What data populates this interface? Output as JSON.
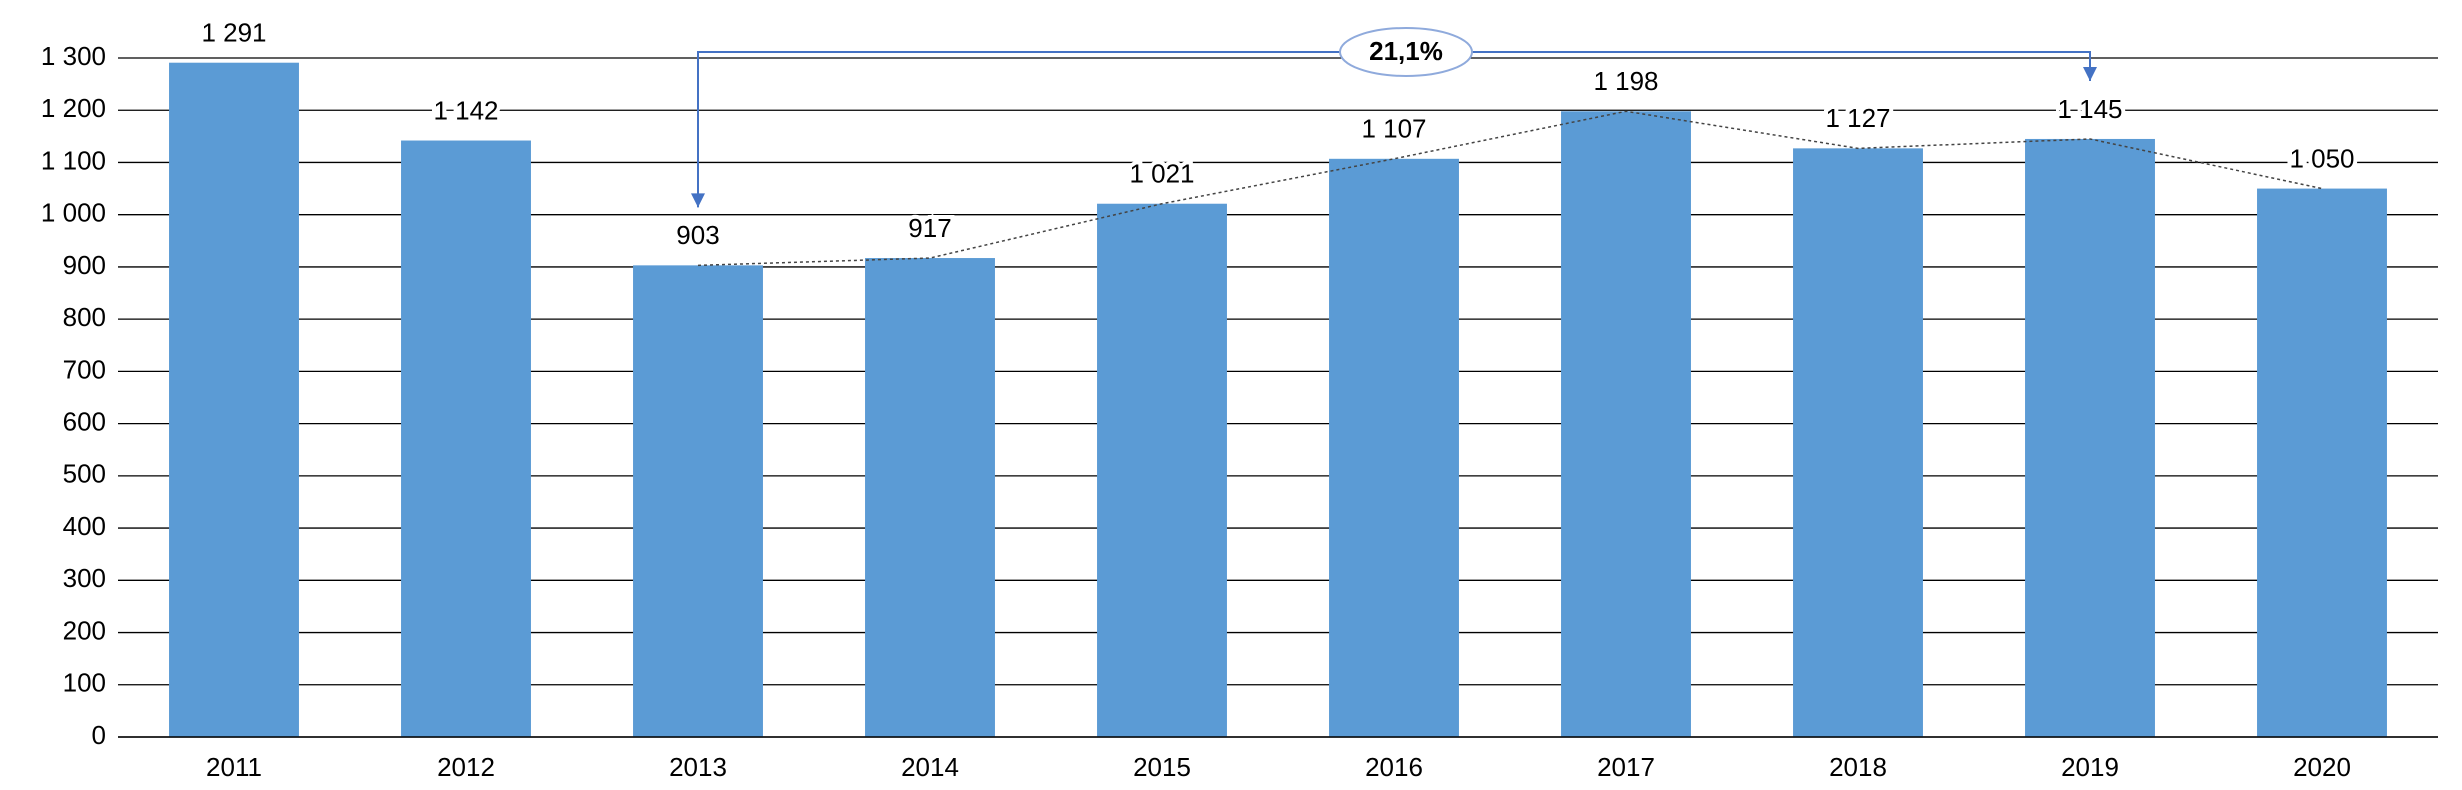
{
  "chart_data": {
    "type": "bar",
    "categories": [
      "2011",
      "2012",
      "2013",
      "2014",
      "2015",
      "2016",
      "2017",
      "2018",
      "2019",
      "2020"
    ],
    "values": [
      1291,
      1142,
      903,
      917,
      1021,
      1107,
      1198,
      1127,
      1145,
      1050
    ],
    "value_labels": [
      "1 291",
      "1 142",
      "903",
      "917",
      "1 021",
      "1 107",
      "1 198",
      "1 127",
      "1 145",
      "1 050"
    ],
    "color": "#5b9bd5",
    "ylim": [
      0,
      1300
    ],
    "yticks": [
      0,
      100,
      200,
      300,
      400,
      500,
      600,
      700,
      800,
      900,
      {
        "value": 1000,
        "label": "1 000"
      },
      {
        "value": 1100,
        "label": "1 100"
      },
      {
        "value": 1200,
        "label": "1 200"
      },
      {
        "value": 1300,
        "label": "1 300"
      }
    ],
    "grid": true,
    "annotation": "21,1%"
  }
}
